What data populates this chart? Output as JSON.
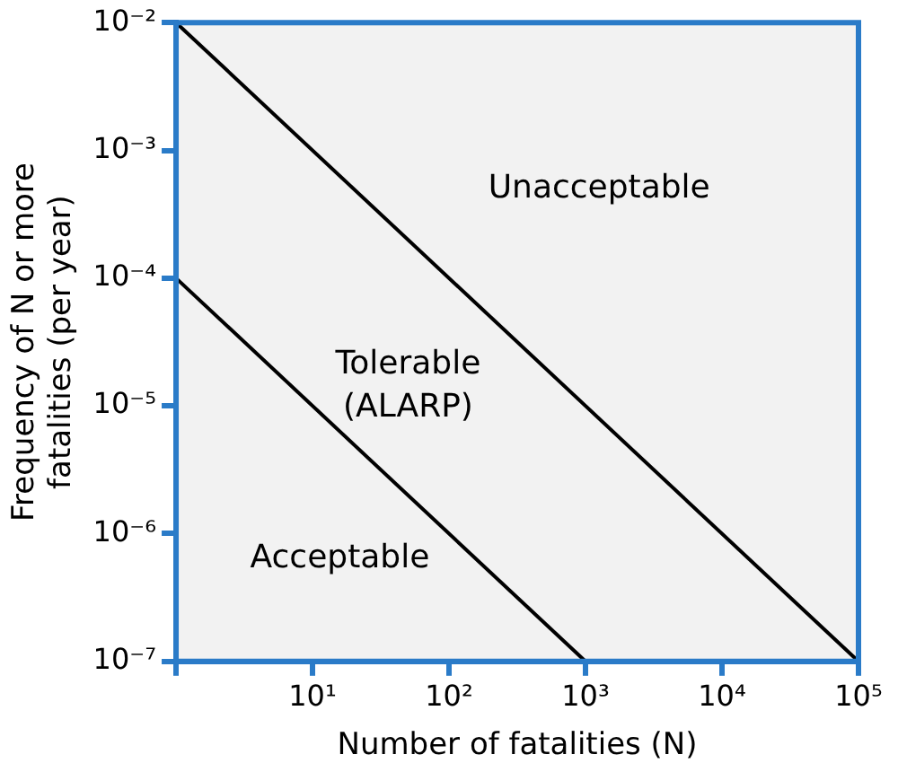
{
  "chart_data": {
    "type": "line",
    "xlabel": "Number of fatalities (N)",
    "ylabel": "Frequency of N or more fatalities (per year)",
    "log": "xy",
    "grid": false,
    "legend": false,
    "marker": "none",
    "line_style": "solid",
    "series": [
      {
        "color": "#000000",
        "x": [
          1,
          100000
        ],
        "values": [
          0.01,
          1e-07
        ]
      },
      {
        "color": "#000000",
        "x": [
          1,
          1000
        ],
        "values": [
          0.0001,
          1e-07
        ]
      }
    ],
    "xlim": [
      1,
      100000
    ],
    "xticks": [
      {
        "value": 1,
        "label": null
      },
      {
        "value": 10,
        "label": "10¹"
      },
      {
        "value": 100,
        "label": "10²"
      },
      {
        "value": 1000,
        "label": "10³"
      },
      {
        "value": 10000,
        "label": "10⁴"
      },
      {
        "value": 100000,
        "label": "10⁵"
      }
    ],
    "ylim": [
      1e-07,
      0.01
    ],
    "yticks": [
      {
        "value": 1e-07,
        "label": "10⁻⁷"
      },
      {
        "value": 1e-06,
        "label": "10⁻⁶"
      },
      {
        "value": 1e-05,
        "label": "10⁻⁵"
      },
      {
        "value": 0.0001,
        "label": "10⁻⁴"
      },
      {
        "value": 0.001,
        "label": "10⁻³"
      },
      {
        "value": 0.01,
        "label": "10⁻²"
      }
    ],
    "annotations": [
      "Unacceptable",
      "Tolerable\n(ALARP)",
      "Acceptable"
    ]
  }
}
